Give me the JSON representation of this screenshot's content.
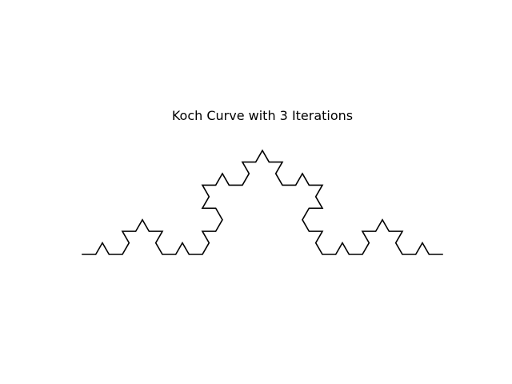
{
  "figure": {
    "title": "Koch Curve with 3 Iterations",
    "background_color": "#ffffff",
    "curve_color": "#000000"
  },
  "chart_data": {
    "type": "line",
    "title": "Koch Curve with 3 Iterations",
    "iterations": 3,
    "x": [
      0,
      1
    ],
    "y": [
      0,
      0
    ],
    "axes_visible": false,
    "grid": false,
    "aspect": "equal"
  }
}
